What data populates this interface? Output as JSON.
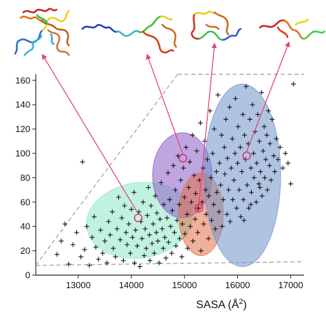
{
  "chart_data": {
    "type": "scatter",
    "xlabel": "SASA (Å",
    "xlabel_sup": "2",
    "xlabel_close": ")",
    "ylabel": "",
    "xlim": [
      12200,
      17250
    ],
    "ylim": [
      0,
      165
    ],
    "xticks": [
      "13000",
      "14000",
      "15000",
      "16000",
      "17000"
    ],
    "yticks": [
      "0",
      "20",
      "40",
      "60",
      "80",
      "100",
      "120",
      "140",
      "160"
    ],
    "xtick_values": [
      13000,
      14000,
      15000,
      16000,
      17000
    ],
    "ytick_values": [
      0,
      20,
      40,
      60,
      80,
      100,
      120,
      140,
      160
    ],
    "grid": false,
    "marker": "plus",
    "clusters": [
      {
        "cx": 14150,
        "cy": 45,
        "rx": 1000,
        "ry": 31,
        "rotation_deg": -8,
        "color": "#8ee8c6"
      },
      {
        "cx": 14960,
        "cy": 82,
        "rx": 560,
        "ry": 35,
        "rotation_deg": 0,
        "color": "#8a5cc8"
      },
      {
        "cx": 15310,
        "cy": 50,
        "rx": 420,
        "ry": 34,
        "rotation_deg": 0,
        "color": "#e2704a"
      },
      {
        "cx": 16090,
        "cy": 82,
        "rx": 720,
        "ry": 75,
        "rotation_deg": 0,
        "color": "#6f94c9"
      }
    ],
    "highlighted_points": [
      {
        "x": 14130,
        "y": 47
      },
      {
        "x": 14970,
        "y": 96
      },
      {
        "x": 15270,
        "y": 55
      },
      {
        "x": 16170,
        "y": 98
      }
    ],
    "reference_lines": [
      {
        "x": [
          12200,
          14870
        ],
        "y": [
          8,
          165
        ],
        "style": "dashed"
      },
      {
        "x": [
          12200,
          17250
        ],
        "y": [
          8,
          11
        ],
        "style": "dashed"
      },
      {
        "x": [
          14870,
          17250
        ],
        "y": [
          165,
          165
        ],
        "style": "dashed"
      }
    ],
    "points": [
      [
        12600,
        17
      ],
      [
        12680,
        28
      ],
      [
        12750,
        42
      ],
      [
        12820,
        9
      ],
      [
        12900,
        25
      ],
      [
        12970,
        35
      ],
      [
        13050,
        15
      ],
      [
        13080,
        93
      ],
      [
        13120,
        21
      ],
      [
        13160,
        40
      ],
      [
        13210,
        8
      ],
      [
        13260,
        31
      ],
      [
        13300,
        48
      ],
      [
        13330,
        23
      ],
      [
        13380,
        13
      ],
      [
        13420,
        37
      ],
      [
        13460,
        18
      ],
      [
        13500,
        28
      ],
      [
        13540,
        10
      ],
      [
        13570,
        44
      ],
      [
        13600,
        33
      ],
      [
        13640,
        52
      ],
      [
        13660,
        22
      ],
      [
        13700,
        15
      ],
      [
        13730,
        38
      ],
      [
        13760,
        64
      ],
      [
        13790,
        29
      ],
      [
        13820,
        47
      ],
      [
        13850,
        12
      ],
      [
        13870,
        57
      ],
      [
        13900,
        35
      ],
      [
        13920,
        25
      ],
      [
        13950,
        42
      ],
      [
        13980,
        18
      ],
      [
        14000,
        54
      ],
      [
        14020,
        31
      ],
      [
        14050,
        68
      ],
      [
        14060,
        10
      ],
      [
        14080,
        37
      ],
      [
        14110,
        24
      ],
      [
        14140,
        52
      ],
      [
        14160,
        7
      ],
      [
        14180,
        44
      ],
      [
        14200,
        30
      ],
      [
        14220,
        60
      ],
      [
        14240,
        16
      ],
      [
        14260,
        38
      ],
      [
        14280,
        22
      ],
      [
        14300,
        49
      ],
      [
        14320,
        72
      ],
      [
        14340,
        33
      ],
      [
        14350,
        12
      ],
      [
        14370,
        57
      ],
      [
        14390,
        26
      ],
      [
        14410,
        42
      ],
      [
        14430,
        18
      ],
      [
        14450,
        65
      ],
      [
        14470,
        35
      ],
      [
        14480,
        51
      ],
      [
        14500,
        28
      ],
      [
        14520,
        10
      ],
      [
        14540,
        46
      ],
      [
        14560,
        76
      ],
      [
        14580,
        38
      ],
      [
        14600,
        22
      ],
      [
        14610,
        58
      ],
      [
        14630,
        31
      ],
      [
        14650,
        14
      ],
      [
        14670,
        47
      ],
      [
        14690,
        84
      ],
      [
        14700,
        27
      ],
      [
        14720,
        62
      ],
      [
        14740,
        40
      ],
      [
        14760,
        18
      ],
      [
        14770,
        53
      ],
      [
        14790,
        90
      ],
      [
        14810,
        35
      ],
      [
        14830,
        70
      ],
      [
        14840,
        24
      ],
      [
        14860,
        45
      ],
      [
        14880,
        98
      ],
      [
        14900,
        58
      ],
      [
        14910,
        30
      ],
      [
        14930,
        78
      ],
      [
        14950,
        15
      ],
      [
        14960,
        42
      ],
      [
        14980,
        88
      ],
      [
        15000,
        64
      ],
      [
        15010,
        34
      ],
      [
        15030,
        105
      ],
      [
        15050,
        50
      ],
      [
        15060,
        22
      ],
      [
        15080,
        72
      ],
      [
        15100,
        93
      ],
      [
        15110,
        40
      ],
      [
        15130,
        60
      ],
      [
        15150,
        115
      ],
      [
        15160,
        28
      ],
      [
        15180,
        82
      ],
      [
        15200,
        46
      ],
      [
        15210,
        67
      ],
      [
        15230,
        102
      ],
      [
        15250,
        35
      ],
      [
        15260,
        55
      ],
      [
        15280,
        78
      ],
      [
        15300,
        125
      ],
      [
        15310,
        20
      ],
      [
        15330,
        60
      ],
      [
        15350,
        88
      ],
      [
        15360,
        42
      ],
      [
        15380,
        110
      ],
      [
        15400,
        70
      ],
      [
        15410,
        50
      ],
      [
        15430,
        95
      ],
      [
        15450,
        30
      ],
      [
        15460,
        65
      ],
      [
        15480,
        135
      ],
      [
        15500,
        80
      ],
      [
        15510,
        45
      ],
      [
        15530,
        100
      ],
      [
        15550,
        58
      ],
      [
        15560,
        120
      ],
      [
        15580,
        38
      ],
      [
        15600,
        85
      ],
      [
        15610,
        68
      ],
      [
        15630,
        148
      ],
      [
        15650,
        52
      ],
      [
        15660,
        92
      ],
      [
        15680,
        74
      ],
      [
        15700,
        115
      ],
      [
        15710,
        40
      ],
      [
        15730,
        62
      ],
      [
        15750,
        105
      ],
      [
        15760,
        83
      ],
      [
        15780,
        128
      ],
      [
        15800,
        50
      ],
      [
        15810,
        96
      ],
      [
        15830,
        70
      ],
      [
        15850,
        138
      ],
      [
        15860,
        44
      ],
      [
        15880,
        88
      ],
      [
        15900,
        112
      ],
      [
        15910,
        62
      ],
      [
        15930,
        78
      ],
      [
        15950,
        100
      ],
      [
        15960,
        145
      ],
      [
        15980,
        55
      ],
      [
        16000,
        92
      ],
      [
        16010,
        122
      ],
      [
        16030,
        70
      ],
      [
        16050,
        105
      ],
      [
        16060,
        48
      ],
      [
        16080,
        85
      ],
      [
        16100,
        132
      ],
      [
        16110,
        62
      ],
      [
        16130,
        115
      ],
      [
        16150,
        95
      ],
      [
        16160,
        155
      ],
      [
        16180,
        74
      ],
      [
        16200,
        108
      ],
      [
        16210,
        55
      ],
      [
        16230,
        128
      ],
      [
        16250,
        88
      ],
      [
        16260,
        68
      ],
      [
        16280,
        140
      ],
      [
        16300,
        100
      ],
      [
        16310,
        80
      ],
      [
        16330,
        118
      ],
      [
        16350,
        60
      ],
      [
        16360,
        92
      ],
      [
        16380,
        132
      ],
      [
        16400,
        75
      ],
      [
        16410,
        110
      ],
      [
        16430,
        85
      ],
      [
        16450,
        150
      ],
      [
        16460,
        65
      ],
      [
        16480,
        102
      ],
      [
        16500,
        122
      ],
      [
        16510,
        80
      ],
      [
        16530,
        95
      ],
      [
        16550,
        115
      ],
      [
        16560,
        70
      ],
      [
        16580,
        135
      ],
      [
        16600,
        90
      ],
      [
        16610,
        108
      ],
      [
        16630,
        78
      ],
      [
        16650,
        128
      ],
      [
        16680,
        98
      ],
      [
        16700,
        85
      ],
      [
        16730,
        112
      ],
      [
        16760,
        95
      ],
      [
        16800,
        105
      ],
      [
        16850,
        88
      ],
      [
        16900,
        100
      ],
      [
        16950,
        92
      ],
      [
        17000,
        75
      ],
      [
        17050,
        157
      ],
      [
        16420,
        72
      ],
      [
        16250,
        58
      ],
      [
        16120,
        45
      ]
    ]
  }
}
